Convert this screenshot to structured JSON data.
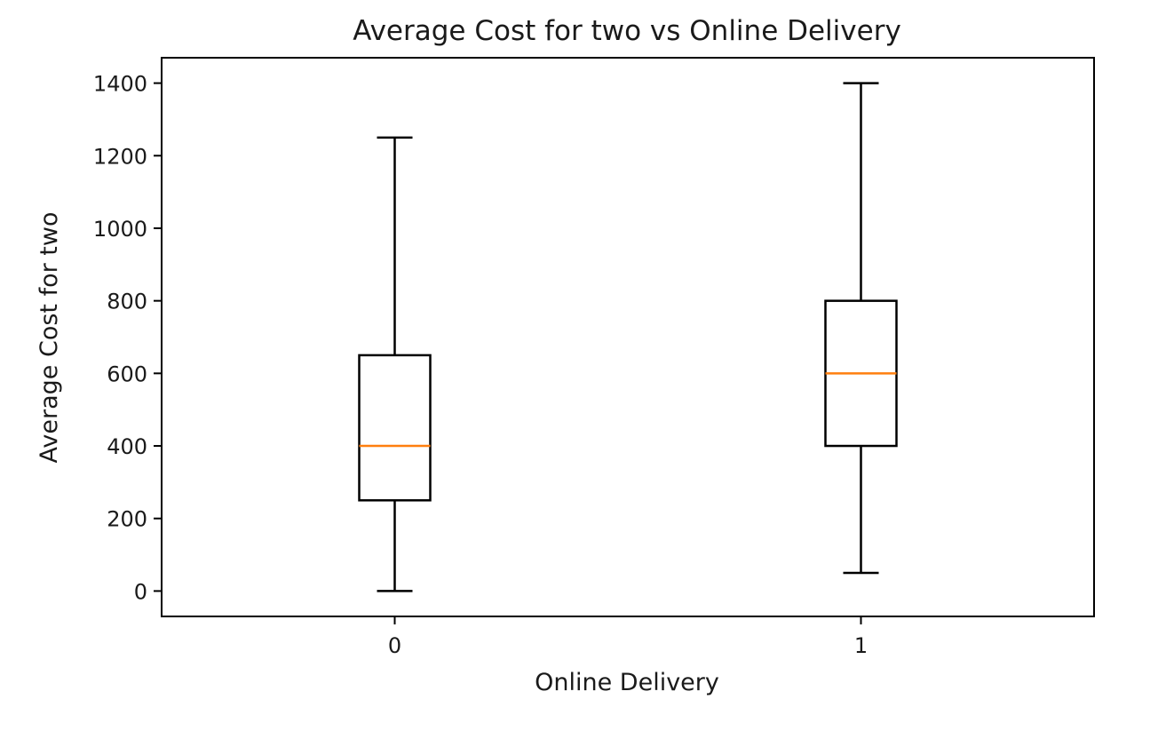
{
  "chart_data": {
    "type": "box",
    "title": "Average Cost for two vs Online Delivery",
    "xlabel": "Online Delivery",
    "ylabel": "Average Cost for two",
    "categories": [
      "0",
      "1"
    ],
    "boxes": [
      {
        "category": "0",
        "whisker_low": 0,
        "q1": 250,
        "median": 400,
        "q3": 650,
        "whisker_high": 1250
      },
      {
        "category": "1",
        "whisker_low": 50,
        "q1": 400,
        "median": 600,
        "q3": 800,
        "whisker_high": 1400
      }
    ],
    "ylim": [
      -70,
      1470
    ],
    "yticks": [
      0,
      200,
      400,
      600,
      800,
      1000,
      1200,
      1400
    ],
    "ytick_labels": [
      "0",
      "200",
      "400",
      "600",
      "800",
      "1000",
      "1200",
      "1400"
    ],
    "grid": false,
    "colors": {
      "box": "#000000",
      "median": "#ff7f0e",
      "axes": "#000000"
    }
  }
}
